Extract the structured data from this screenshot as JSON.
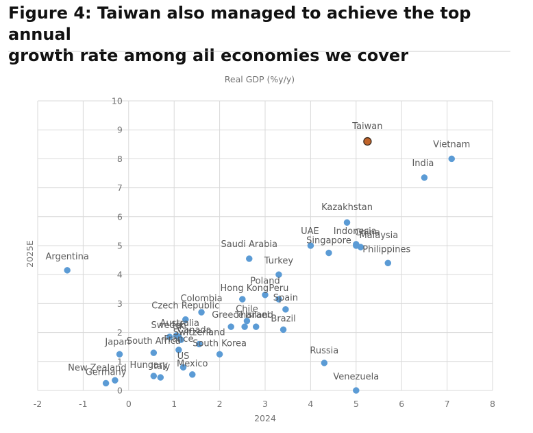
{
  "header": {
    "title_line1": "Figure 4: Taiwan also managed to achieve the top annual",
    "title_line2": "growth rate among all economies we cover"
  },
  "colors": {
    "point": "#5b9bd5",
    "highlight": "#c0642a",
    "highlight_outline": "#3a2a1e",
    "grid": "#d9d9d9",
    "label": "#595959",
    "axis_text": "#737373"
  },
  "chart_data": {
    "type": "scatter",
    "title": "Real GDP (%y/y)",
    "xlabel": "2024",
    "ylabel": "2025E",
    "xlim": [
      -2,
      8
    ],
    "ylim": [
      0,
      10
    ],
    "x_ticks": [
      -2,
      -1,
      0,
      1,
      2,
      3,
      4,
      5,
      6,
      7,
      8
    ],
    "y_ticks": [
      0,
      1,
      2,
      3,
      4,
      5,
      6,
      7,
      8,
      9,
      10
    ],
    "grid": true,
    "points": [
      {
        "name": "Taiwan",
        "x": 5.25,
        "y": 8.6,
        "highlight": true
      },
      {
        "name": "Vietnam",
        "x": 7.1,
        "y": 8.0
      },
      {
        "name": "India",
        "x": 6.5,
        "y": 7.35
      },
      {
        "name": "Kazakhstan",
        "x": 4.8,
        "y": 5.8
      },
      {
        "name": "Indonesia",
        "x": 5.0,
        "y": 5.05
      },
      {
        "name": "China",
        "x": 5.0,
        "y": 5.0
      },
      {
        "name": "Malaysia",
        "x": 5.1,
        "y": 4.95
      },
      {
        "name": "UAE",
        "x": 4.0,
        "y": 5.0
      },
      {
        "name": "Singapore",
        "x": 4.4,
        "y": 4.75
      },
      {
        "name": "Philippines",
        "x": 5.7,
        "y": 4.4
      },
      {
        "name": "Saudi Arabia",
        "x": 2.65,
        "y": 4.55
      },
      {
        "name": "Turkey",
        "x": 3.3,
        "y": 4.0
      },
      {
        "name": "Argentina",
        "x": -1.35,
        "y": 4.15
      },
      {
        "name": "Poland",
        "x": 3.0,
        "y": 3.3
      },
      {
        "name": "Hong Kong",
        "x": 2.5,
        "y": 3.15
      },
      {
        "name": "Peru",
        "x": 3.3,
        "y": 3.15
      },
      {
        "name": "Spain",
        "x": 3.45,
        "y": 2.8
      },
      {
        "name": "Colombia",
        "x": 1.6,
        "y": 2.7
      },
      {
        "name": "Czech Republic",
        "x": 1.25,
        "y": 2.45
      },
      {
        "name": "Chile",
        "x": 2.6,
        "y": 2.4
      },
      {
        "name": "Greece",
        "x": 2.25,
        "y": 2.2
      },
      {
        "name": "Thailand",
        "x": 2.55,
        "y": 2.2
      },
      {
        "name": "Israel",
        "x": 2.8,
        "y": 2.2
      },
      {
        "name": "Brazil",
        "x": 3.4,
        "y": 2.1
      },
      {
        "name": "Sweden",
        "x": 0.9,
        "y": 1.85
      },
      {
        "name": "Australia",
        "x": 1.05,
        "y": 1.9
      },
      {
        "name": "UK",
        "x": 1.1,
        "y": 1.85
      },
      {
        "name": "Canada",
        "x": 1.15,
        "y": 1.75
      },
      {
        "name": "South Korea",
        "x": 2.0,
        "y": 1.25
      },
      {
        "name": "Switzerland",
        "x": 1.55,
        "y": 1.6
      },
      {
        "name": "South Africa",
        "x": 0.55,
        "y": 1.3
      },
      {
        "name": "France",
        "x": 1.1,
        "y": 1.4
      },
      {
        "name": "Japan",
        "x": -0.2,
        "y": 1.25
      },
      {
        "name": "Mexico",
        "x": 1.4,
        "y": 0.55
      },
      {
        "name": "Hungary",
        "x": 0.55,
        "y": 0.5
      },
      {
        "name": "Italy",
        "x": 0.7,
        "y": 0.45
      },
      {
        "name": "US",
        "x": 1.2,
        "y": 0.8
      },
      {
        "name": "New Zealand",
        "x": -0.3,
        "y": 0.35
      },
      {
        "name": "Germany",
        "x": -0.5,
        "y": 0.25
      },
      {
        "name": "Russia",
        "x": 4.3,
        "y": 0.95
      },
      {
        "name": "Venezuela",
        "x": 5.0,
        "y": 0.0
      }
    ],
    "labels": [
      {
        "text": "Taiwan",
        "x": 5.25,
        "y": 8.6
      },
      {
        "text": "Vietnam",
        "x": 7.1,
        "y": 8.0
      },
      {
        "text": "India",
        "x": 6.5,
        "y": 7.35
      },
      {
        "text": "Kazakhstan",
        "x": 4.8,
        "y": 5.8
      },
      {
        "text": "Indonesia",
        "x": 5.0,
        "y": 5.05
      },
      {
        "text": "China",
        "x": 5.0,
        "y": 5.0
      },
      {
        "text": "Malaysia",
        "x": 5.1,
        "y": 4.95
      },
      {
        "text": "UAE",
        "x": 4.0,
        "y": 5.0
      },
      {
        "text": "Singapore",
        "x": 4.4,
        "y": 4.75
      },
      {
        "text": "Philippines",
        "x": 5.7,
        "y": 4.4
      },
      {
        "text": "Saudi Arabia",
        "x": 2.65,
        "y": 4.55
      },
      {
        "text": "Turkey",
        "x": 3.3,
        "y": 4.0
      },
      {
        "text": "Argentina",
        "x": -1.35,
        "y": 4.15
      },
      {
        "text": "Poland",
        "x": 3.0,
        "y": 3.3
      },
      {
        "text": "Hong Kong",
        "x": 2.5,
        "y": 3.15
      },
      {
        "text": "Peru",
        "x": 3.3,
        "y": 3.15
      },
      {
        "text": "Spain",
        "x": 3.45,
        "y": 2.8
      },
      {
        "text": "Colombia",
        "x": 1.6,
        "y": 2.7
      },
      {
        "text": "Czech Republic",
        "x": 1.25,
        "y": 2.45
      },
      {
        "text": "Chile",
        "x": 2.6,
        "y": 2.4
      },
      {
        "text": "Greece",
        "x": 2.25,
        "y": 2.2
      },
      {
        "text": "Thailand",
        "x": 2.55,
        "y": 2.2
      },
      {
        "text": "Israel",
        "x": 2.8,
        "y": 2.2
      },
      {
        "text": "Brazil",
        "x": 3.4,
        "y": 2.1
      },
      {
        "text": "Sweden",
        "x": 0.9,
        "y": 1.85
      },
      {
        "text": "Australia",
        "x": 1.05,
        "y": 1.9
      },
      {
        "text": "UK",
        "x": 1.1,
        "y": 1.85
      },
      {
        "text": "Canada",
        "x": 1.15,
        "y": 1.75
      },
      {
        "text": "South Korea",
        "x": 2.0,
        "y": 1.25
      },
      {
        "text": "Switzerland",
        "x": 1.55,
        "y": 1.6
      },
      {
        "text": "South Africa",
        "x": 0.55,
        "y": 1.3
      },
      {
        "text": "France",
        "x": 1.1,
        "y": 1.4
      },
      {
        "text": "Japan",
        "x": -0.2,
        "y": 1.25
      },
      {
        "text": "Mexico",
        "x": 1.4,
        "y": 0.55
      },
      {
        "text": "Hungary",
        "x": 0.55,
        "y": 0.5
      },
      {
        "text": "Italy",
        "x": 0.7,
        "y": 0.45
      },
      {
        "text": "US",
        "x": 1.2,
        "y": 0.8
      },
      {
        "text": "New Zealand",
        "x": -0.3,
        "y": 0.35
      },
      {
        "text": "Germany",
        "x": -0.5,
        "y": 0.25
      },
      {
        "text": "Russia",
        "x": 4.3,
        "y": 0.95
      },
      {
        "text": "Venezuela",
        "x": 5.0,
        "y": 0.0
      }
    ]
  }
}
